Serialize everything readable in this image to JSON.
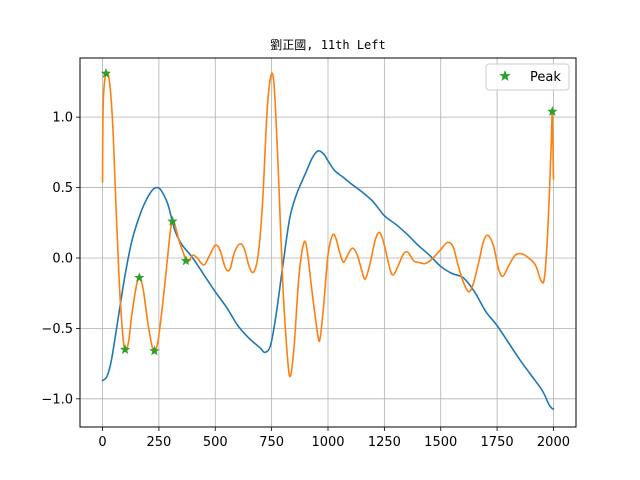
{
  "chart_data": {
    "type": "line",
    "title": "劉正國, 11th Left",
    "xlabel": "",
    "ylabel": "",
    "xlim": [
      -100,
      2100
    ],
    "ylim": [
      -1.2,
      1.42
    ],
    "xticks": [
      0,
      250,
      500,
      750,
      1000,
      1250,
      1500,
      1750,
      2000
    ],
    "yticks": [
      -1.0,
      -0.5,
      0.0,
      0.5,
      1.0
    ],
    "xtick_labels": [
      "0",
      "250",
      "500",
      "750",
      "1000",
      "1250",
      "1500",
      "1750",
      "2000"
    ],
    "ytick_labels": [
      "−1.0",
      "−0.5",
      "0.0",
      "0.5",
      "1.0"
    ],
    "grid": true,
    "legend": {
      "position": "upper-right",
      "entries": [
        "Peak"
      ]
    },
    "series": [
      {
        "color": "#1f77b4",
        "points": [
          [
            0,
            -0.87
          ],
          [
            20,
            -0.84
          ],
          [
            40,
            -0.72
          ],
          [
            70,
            -0.42
          ],
          [
            100,
            -0.12
          ],
          [
            130,
            0.12
          ],
          [
            160,
            0.28
          ],
          [
            190,
            0.4
          ],
          [
            220,
            0.48
          ],
          [
            240,
            0.5
          ],
          [
            260,
            0.48
          ],
          [
            290,
            0.38
          ],
          [
            320,
            0.2
          ],
          [
            350,
            0.1
          ],
          [
            400,
            0.0
          ],
          [
            450,
            -0.12
          ],
          [
            500,
            -0.24
          ],
          [
            550,
            -0.35
          ],
          [
            600,
            -0.48
          ],
          [
            650,
            -0.57
          ],
          [
            700,
            -0.64
          ],
          [
            720,
            -0.67
          ],
          [
            745,
            -0.62
          ],
          [
            770,
            -0.4
          ],
          [
            800,
            -0.05
          ],
          [
            830,
            0.28
          ],
          [
            860,
            0.45
          ],
          [
            900,
            0.6
          ],
          [
            930,
            0.71
          ],
          [
            955,
            0.76
          ],
          [
            980,
            0.74
          ],
          [
            1000,
            0.69
          ],
          [
            1030,
            0.62
          ],
          [
            1070,
            0.57
          ],
          [
            1100,
            0.53
          ],
          [
            1150,
            0.47
          ],
          [
            1200,
            0.4
          ],
          [
            1250,
            0.3
          ],
          [
            1300,
            0.24
          ],
          [
            1350,
            0.17
          ],
          [
            1400,
            0.09
          ],
          [
            1450,
            0.02
          ],
          [
            1500,
            -0.06
          ],
          [
            1550,
            -0.11
          ],
          [
            1600,
            -0.14
          ],
          [
            1650,
            -0.24
          ],
          [
            1700,
            -0.38
          ],
          [
            1750,
            -0.48
          ],
          [
            1800,
            -0.6
          ],
          [
            1850,
            -0.72
          ],
          [
            1900,
            -0.83
          ],
          [
            1950,
            -0.94
          ],
          [
            1980,
            -1.04
          ],
          [
            1995,
            -1.07
          ],
          [
            2000,
            -1.07
          ]
        ]
      },
      {
        "color": "#ff7f0e",
        "points": [
          [
            0,
            0.54
          ],
          [
            3,
            1.1
          ],
          [
            15,
            1.31
          ],
          [
            30,
            1.26
          ],
          [
            45,
            0.95
          ],
          [
            60,
            0.35
          ],
          [
            75,
            -0.2
          ],
          [
            90,
            -0.55
          ],
          [
            100,
            -0.65
          ],
          [
            115,
            -0.6
          ],
          [
            130,
            -0.4
          ],
          [
            150,
            -0.2
          ],
          [
            163,
            -0.14
          ],
          [
            180,
            -0.22
          ],
          [
            200,
            -0.45
          ],
          [
            220,
            -0.63
          ],
          [
            230,
            -0.66
          ],
          [
            245,
            -0.6
          ],
          [
            265,
            -0.35
          ],
          [
            285,
            -0.05
          ],
          [
            300,
            0.18
          ],
          [
            310,
            0.26
          ],
          [
            320,
            0.24
          ],
          [
            340,
            0.12
          ],
          [
            360,
            0.03
          ],
          [
            370,
            -0.02
          ],
          [
            385,
            -0.02
          ],
          [
            400,
            0.02
          ],
          [
            420,
            0.0
          ],
          [
            450,
            -0.05
          ],
          [
            475,
            0.02
          ],
          [
            500,
            0.09
          ],
          [
            520,
            0.06
          ],
          [
            545,
            -0.07
          ],
          [
            565,
            -0.08
          ],
          [
            585,
            0.04
          ],
          [
            610,
            0.1
          ],
          [
            630,
            0.06
          ],
          [
            650,
            -0.06
          ],
          [
            670,
            -0.1
          ],
          [
            690,
            0.02
          ],
          [
            710,
            0.4
          ],
          [
            730,
            1.05
          ],
          [
            748,
            1.3
          ],
          [
            762,
            1.2
          ],
          [
            780,
            0.6
          ],
          [
            800,
            -0.2
          ],
          [
            820,
            -0.7
          ],
          [
            833,
            -0.84
          ],
          [
            850,
            -0.62
          ],
          [
            870,
            -0.15
          ],
          [
            890,
            0.09
          ],
          [
            905,
            0.08
          ],
          [
            930,
            -0.25
          ],
          [
            955,
            -0.55
          ],
          [
            965,
            -0.57
          ],
          [
            980,
            -0.35
          ],
          [
            1000,
            0.02
          ],
          [
            1020,
            0.16
          ],
          [
            1035,
            0.14
          ],
          [
            1055,
            0.02
          ],
          [
            1070,
            -0.03
          ],
          [
            1090,
            0.03
          ],
          [
            1110,
            0.07
          ],
          [
            1130,
            0.02
          ],
          [
            1150,
            -0.09
          ],
          [
            1165,
            -0.15
          ],
          [
            1185,
            -0.05
          ],
          [
            1210,
            0.13
          ],
          [
            1230,
            0.18
          ],
          [
            1250,
            0.09
          ],
          [
            1275,
            -0.08
          ],
          [
            1290,
            -0.12
          ],
          [
            1310,
            -0.06
          ],
          [
            1335,
            0.03
          ],
          [
            1355,
            0.04
          ],
          [
            1380,
            -0.02
          ],
          [
            1400,
            -0.03
          ],
          [
            1430,
            -0.04
          ],
          [
            1460,
            -0.01
          ],
          [
            1500,
            0.06
          ],
          [
            1530,
            0.11
          ],
          [
            1555,
            0.08
          ],
          [
            1575,
            -0.04
          ],
          [
            1600,
            -0.17
          ],
          [
            1625,
            -0.24
          ],
          [
            1645,
            -0.18
          ],
          [
            1670,
            -0.02
          ],
          [
            1690,
            0.12
          ],
          [
            1710,
            0.16
          ],
          [
            1735,
            0.08
          ],
          [
            1755,
            -0.07
          ],
          [
            1775,
            -0.13
          ],
          [
            1800,
            -0.06
          ],
          [
            1830,
            0.02
          ],
          [
            1860,
            0.03
          ],
          [
            1890,
            0.0
          ],
          [
            1920,
            -0.05
          ],
          [
            1945,
            -0.16
          ],
          [
            1960,
            -0.14
          ],
          [
            1975,
            0.2
          ],
          [
            1990,
            0.8
          ],
          [
            1995,
            1.04
          ],
          [
            2000,
            0.56
          ]
        ]
      }
    ],
    "peaks": {
      "name": "Peak",
      "color": "#2ca02c",
      "points": [
        [
          15,
          1.31
        ],
        [
          100,
          -0.65
        ],
        [
          163,
          -0.14
        ],
        [
          230,
          -0.66
        ],
        [
          310,
          0.26
        ],
        [
          370,
          -0.02
        ],
        [
          1995,
          1.04
        ]
      ]
    }
  }
}
